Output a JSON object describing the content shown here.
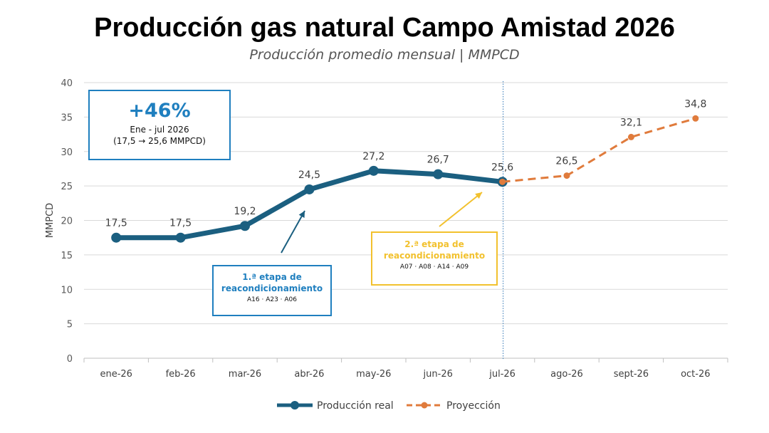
{
  "title": "Producción gas natural Campo Amistad 2026",
  "subtitle": "Producción promedio mensual | MMPCD",
  "chart_data": {
    "type": "line",
    "categories": [
      "ene-26",
      "feb-26",
      "mar-26",
      "abr-26",
      "may-26",
      "jun-26",
      "jul-26",
      "ago-26",
      "sept-26",
      "oct-26"
    ],
    "series": [
      {
        "name": "Producción real",
        "color": "#1b5f80",
        "style": "solid",
        "values": [
          17.5,
          17.5,
          19.2,
          24.5,
          27.2,
          26.7,
          25.6,
          null,
          null,
          null
        ],
        "labels": [
          "17,5",
          "17,5",
          "19,2",
          "24,5",
          "27,2",
          "26,7",
          "25,6",
          "",
          "",
          ""
        ]
      },
      {
        "name": "Proyección",
        "color": "#e07b3c",
        "style": "dashed",
        "values": [
          null,
          null,
          null,
          null,
          null,
          null,
          25.6,
          26.5,
          32.1,
          34.8
        ],
        "labels": [
          "",
          "",
          "",
          "",
          "",
          "",
          "",
          "26,5",
          "32,1",
          "34,8"
        ]
      }
    ],
    "ylabel": "MMPCD",
    "xlabel": "",
    "ylim": [
      0,
      40
    ],
    "yticks": [
      0,
      5,
      10,
      15,
      20,
      25,
      30,
      35,
      40
    ],
    "grid": true,
    "legend": "bottom",
    "divider_after": "jul-26"
  },
  "annotations": {
    "kpi": {
      "value": "+46%",
      "period": "Ene - jul 2026",
      "range": "(17,5 → 25,6 MMPCD)",
      "color": "#1f7fbf"
    },
    "stage1": {
      "title": "1.ª etapa de reacondicionamiento",
      "wells": "A16 · A23 · A06",
      "color": "#1f7fbf",
      "points_to": "abr-26"
    },
    "stage2": {
      "title": "2.ª etapa de reacondicionamiento",
      "wells": "A07 · A08 · A14 · A09",
      "color": "#f2c12e",
      "points_to": "jul-26"
    }
  }
}
